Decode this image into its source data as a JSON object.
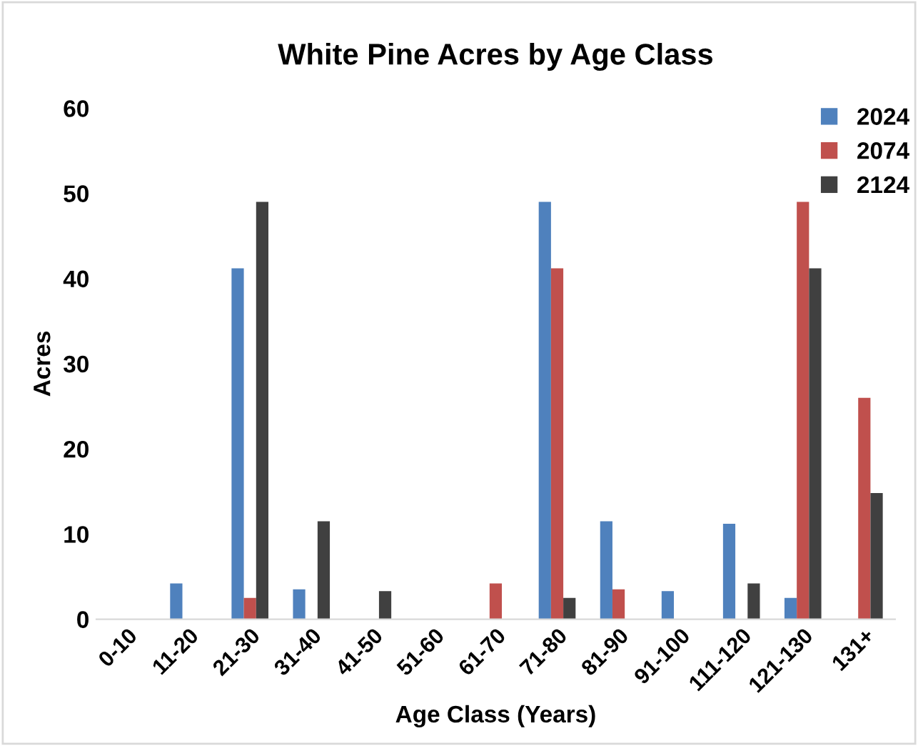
{
  "chart_data": {
    "type": "bar",
    "title": "White Pine Acres by Age Class",
    "xlabel": "Age Class (Years)",
    "ylabel": "Acres",
    "categories": [
      "0-10",
      "11-20",
      "21-30",
      "31-40",
      "41-50",
      "51-60",
      "61-70",
      "71-80",
      "81-90",
      "91-100",
      "111-120",
      "121-130",
      "131+"
    ],
    "series": [
      {
        "name": "2024",
        "color": "#4f81bd",
        "values": [
          0,
          4.2,
          41.2,
          3.5,
          0,
          0,
          0,
          49,
          11.5,
          3.3,
          11.2,
          2.5,
          0
        ]
      },
      {
        "name": "2074",
        "color": "#c0504d",
        "values": [
          0,
          0,
          2.5,
          0,
          0,
          0,
          4.2,
          41.2,
          3.5,
          0,
          0,
          49,
          26
        ]
      },
      {
        "name": "2124",
        "color": "#404040",
        "values": [
          0,
          0,
          49,
          11.5,
          3.3,
          0,
          0,
          2.5,
          0,
          0,
          4.2,
          41.2,
          14.8
        ]
      }
    ],
    "ylim": [
      0,
      60
    ],
    "yticks": [
      0,
      10,
      20,
      30,
      40,
      50,
      60
    ],
    "grid": false,
    "legend": "top right"
  }
}
